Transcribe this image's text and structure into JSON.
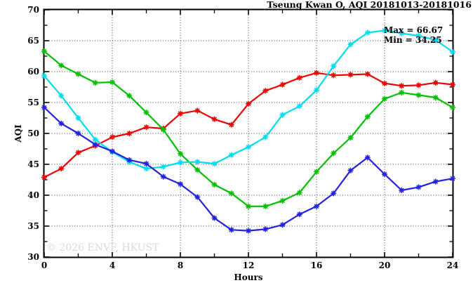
{
  "title": "Tseung Kwan O, AQI 20181013-20181016",
  "annotations": {
    "max_label": "Max = 66.67",
    "min_label": "Min = 34.25"
  },
  "watermark": "© 2026 ENVF, HKUST",
  "axes": {
    "xlabel": "Hours",
    "ylabel": "AQI"
  },
  "chart_data": {
    "type": "line",
    "title": "Tseung Kwan O, AQI 20181013-20181016",
    "xlabel": "Hours",
    "ylabel": "AQI",
    "xlim": [
      0,
      24
    ],
    "ylim": [
      30,
      70
    ],
    "x_major_ticks": [
      0,
      4,
      8,
      12,
      16,
      20,
      24
    ],
    "x_minor_ticks": [
      2,
      6,
      10,
      14,
      18,
      22
    ],
    "y_major_ticks": [
      30,
      35,
      40,
      45,
      50,
      55,
      60,
      65,
      70
    ],
    "y_minor_ticks": [
      32.5,
      37.5,
      42.5,
      47.5,
      52.5,
      57.5,
      62.5,
      67.5
    ],
    "grid_x": [
      4,
      8,
      12,
      16,
      20
    ],
    "grid_y": [
      35,
      40,
      45,
      50,
      55,
      60,
      65
    ],
    "grid_style": "dotted",
    "legend": "none",
    "marker": "star",
    "max_value": 66.67,
    "min_value": 34.25,
    "x": [
      0,
      1,
      2,
      3,
      4,
      5,
      6,
      7,
      8,
      9,
      10,
      11,
      12,
      13,
      14,
      15,
      16,
      17,
      18,
      19,
      20,
      21,
      22,
      23,
      24
    ],
    "series": [
      {
        "name": "red-series",
        "color": "#ee0000",
        "values": [
          42.9,
          44.3,
          46.9,
          48.0,
          49.4,
          50.0,
          51.0,
          50.8,
          53.2,
          53.7,
          52.3,
          51.4,
          54.8,
          56.9,
          57.9,
          59.0,
          59.8,
          59.4,
          59.5,
          59.6,
          58.1,
          57.7,
          57.8,
          58.2,
          57.9
        ]
      },
      {
        "name": "green-series",
        "color": "#00c000",
        "values": [
          63.3,
          61.0,
          59.6,
          58.2,
          58.3,
          56.1,
          53.4,
          50.6,
          46.7,
          44.1,
          41.7,
          40.3,
          38.2,
          38.2,
          39.1,
          40.4,
          43.8,
          46.8,
          49.3,
          52.7,
          55.6,
          56.6,
          56.2,
          55.8,
          54.2
        ]
      },
      {
        "name": "cyan-series",
        "color": "#00ddee",
        "values": [
          59.3,
          56.1,
          52.5,
          49.0,
          47.0,
          45.4,
          44.3,
          44.6,
          45.3,
          45.4,
          45.1,
          46.5,
          47.8,
          49.4,
          53.0,
          54.4,
          57.0,
          60.9,
          64.4,
          66.3,
          66.67,
          66.2,
          65.8,
          65.1,
          63.2
        ]
      },
      {
        "name": "blue-series",
        "color": "#2222e0",
        "values": [
          54.2,
          51.6,
          50.0,
          48.2,
          47.1,
          45.7,
          45.1,
          43.0,
          41.8,
          39.7,
          36.3,
          34.4,
          34.25,
          34.5,
          35.2,
          36.9,
          38.2,
          40.3,
          44.0,
          46.1,
          43.4,
          40.8,
          41.3,
          42.2,
          42.7
        ]
      }
    ]
  }
}
